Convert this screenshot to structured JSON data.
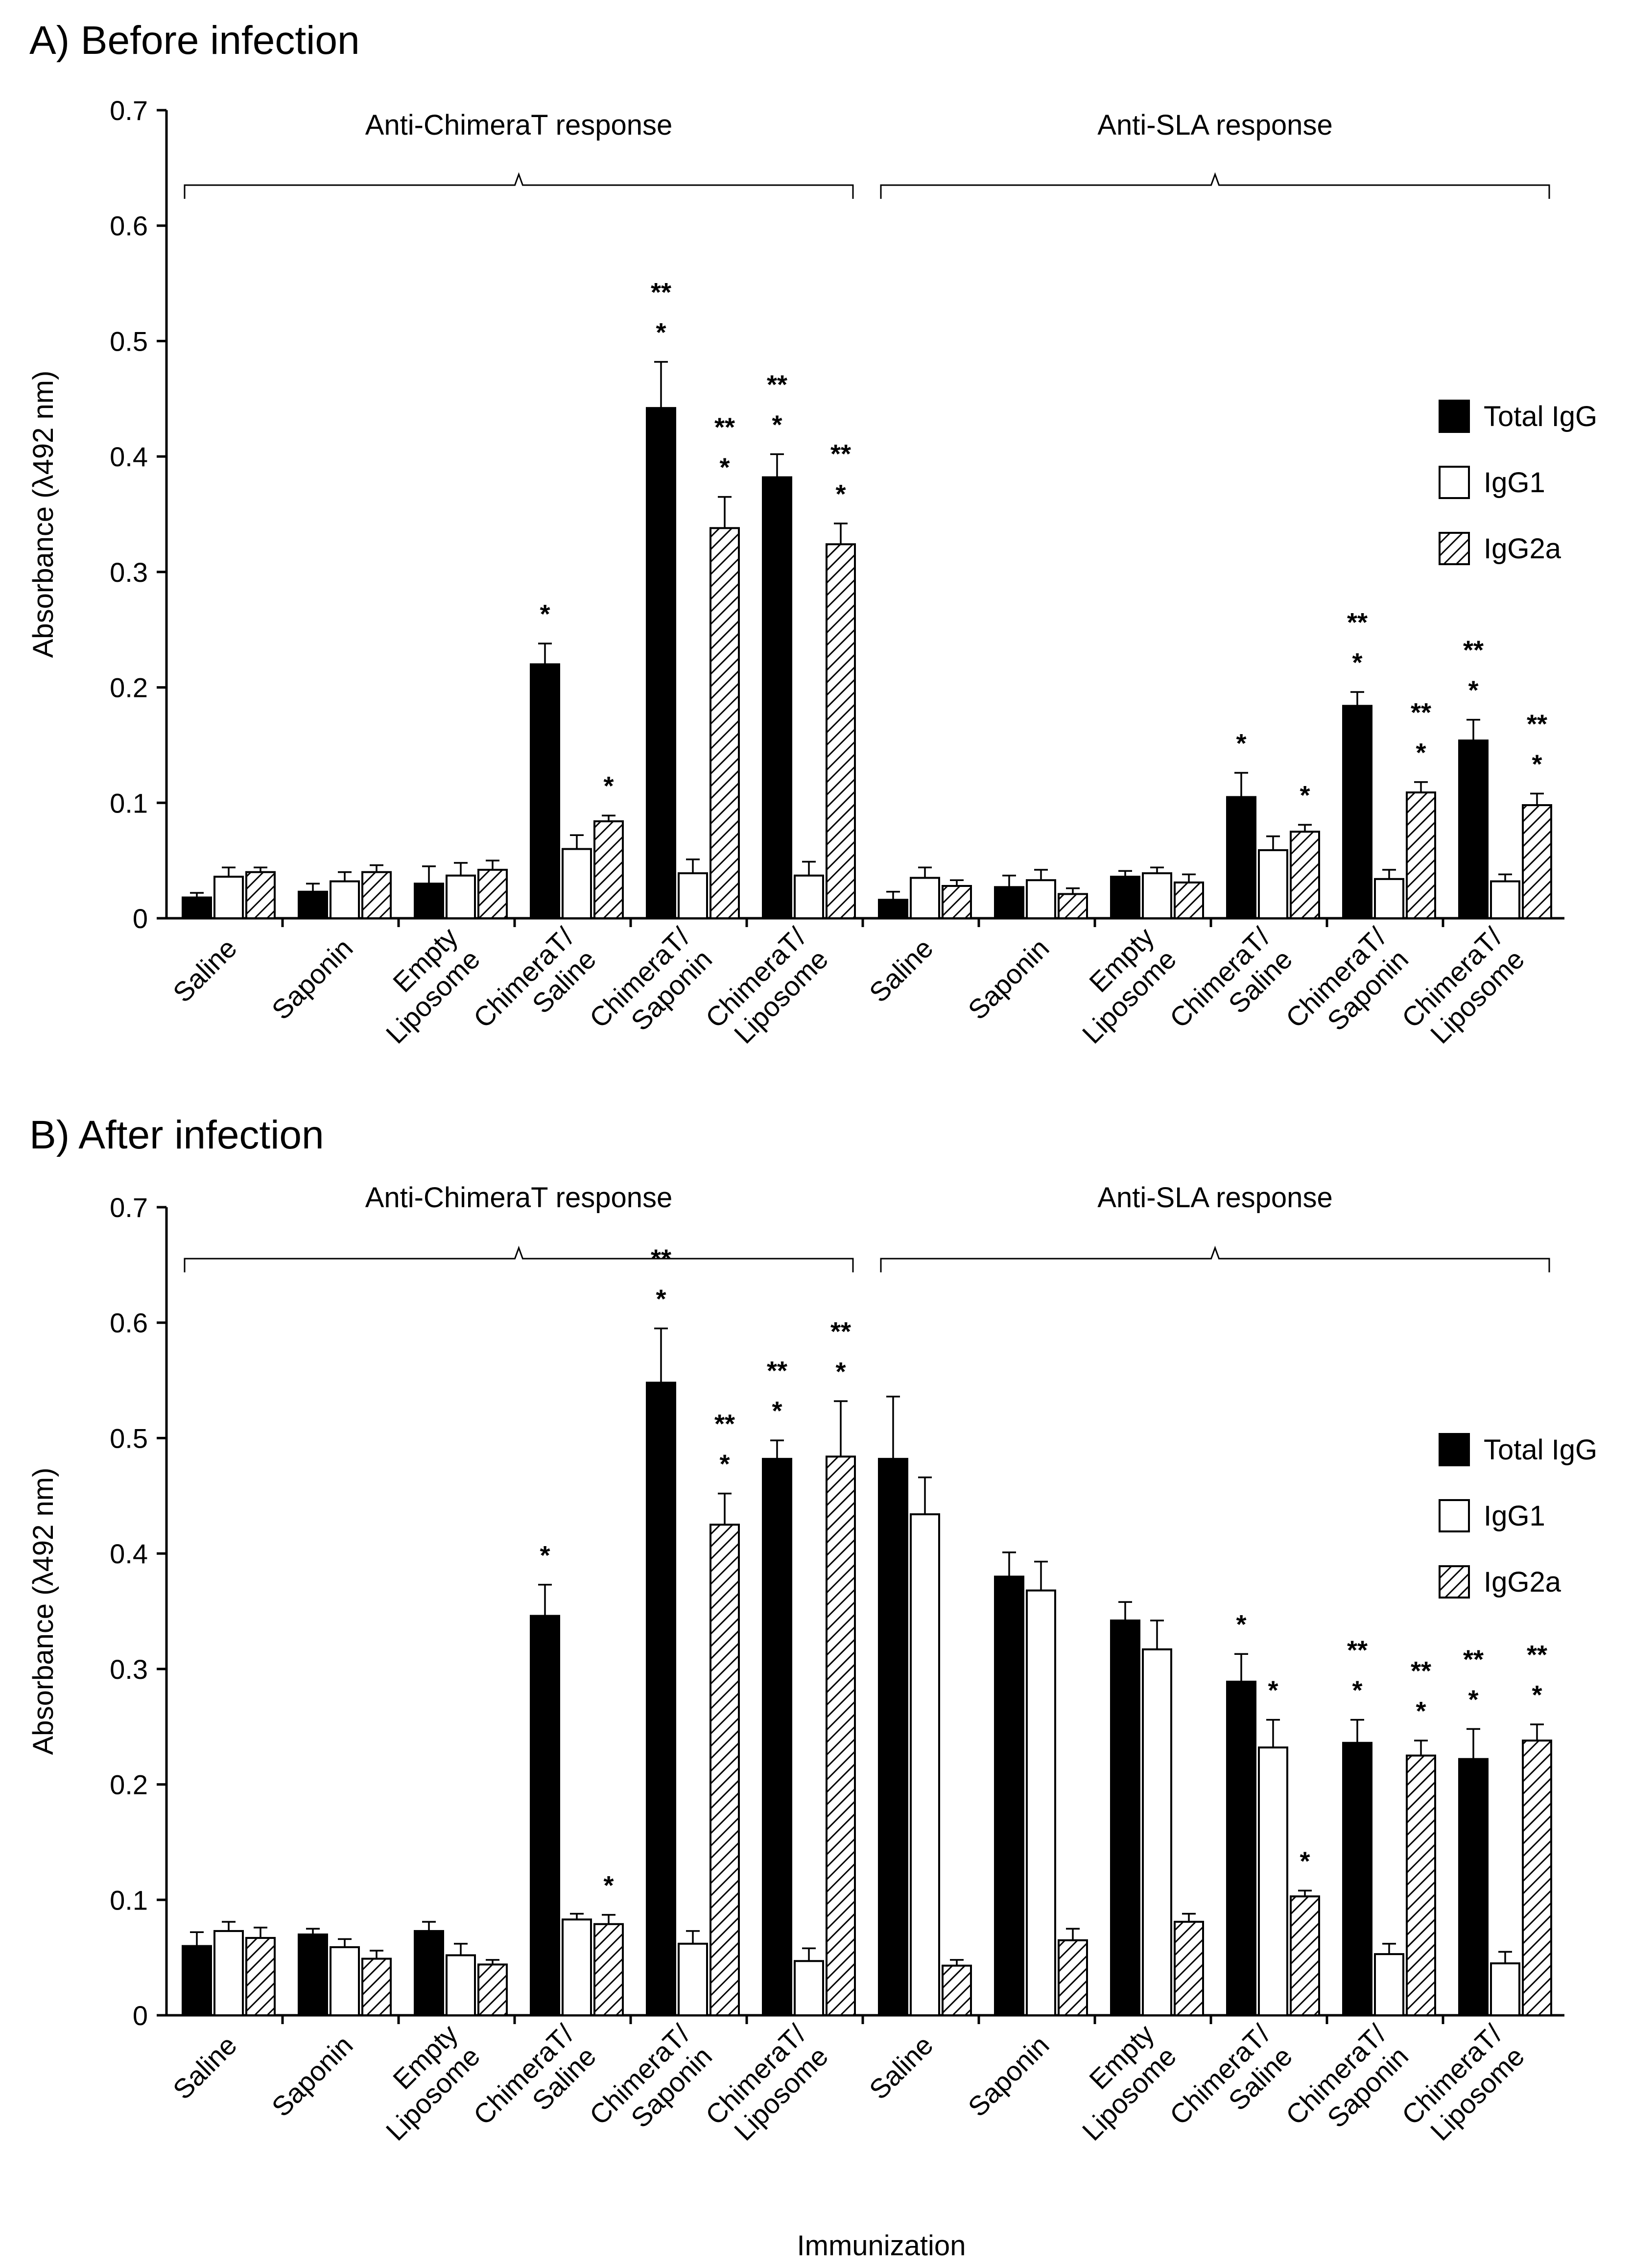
{
  "chart_data": [
    {
      "type": "bar",
      "title": "A) Before infection",
      "ylabel": "Absorbance (λ492 nm)",
      "xlabel": "",
      "ylim": [
        0,
        0.7
      ],
      "yticks": [
        "0",
        "0.1",
        "0.2",
        "0.3",
        "0.4",
        "0.5",
        "0.6",
        "0.7"
      ],
      "grid": false,
      "legend_position": "right",
      "group_labels": [
        "Anti-ChimeraT response",
        "Anti-SLA response"
      ],
      "categories": [
        [
          "Saline"
        ],
        [
          "Saponin"
        ],
        [
          "Empty",
          "Liposome"
        ],
        [
          "ChimeraT/",
          "Saline"
        ],
        [
          "ChimeraT/",
          "Saponin"
        ],
        [
          "ChimeraT/",
          "Liposome"
        ],
        [
          "Saline"
        ],
        [
          "Saponin"
        ],
        [
          "Empty",
          "Liposome"
        ],
        [
          "ChimeraT/",
          "Saline"
        ],
        [
          "ChimeraT/",
          "Saponin"
        ],
        [
          "ChimeraT/",
          "Liposome"
        ]
      ],
      "series": [
        {
          "name": "Total IgG",
          "pattern": "solid",
          "color": "#000000",
          "values": [
            0.018,
            0.023,
            0.03,
            0.22,
            0.442,
            0.382,
            0.016,
            0.027,
            0.036,
            0.105,
            0.184,
            0.154
          ],
          "errors": [
            0.004,
            0.007,
            0.015,
            0.018,
            0.04,
            0.02,
            0.007,
            0.01,
            0.005,
            0.021,
            0.012,
            0.018
          ],
          "marks": [
            "",
            "",
            "",
            "*",
            "*|**",
            "*|**",
            "",
            "",
            "",
            "*",
            "*|**",
            "*|**"
          ]
        },
        {
          "name": "IgG1",
          "pattern": "open",
          "color": "#ffffff",
          "values": [
            0.036,
            0.032,
            0.037,
            0.06,
            0.039,
            0.037,
            0.035,
            0.033,
            0.039,
            0.059,
            0.034,
            0.032
          ],
          "errors": [
            0.008,
            0.008,
            0.011,
            0.012,
            0.012,
            0.012,
            0.009,
            0.009,
            0.005,
            0.012,
            0.008,
            0.006
          ],
          "marks": [
            "",
            "",
            "",
            "",
            "",
            "",
            "",
            "",
            "",
            "",
            "",
            ""
          ]
        },
        {
          "name": "IgG2a",
          "pattern": "hatched",
          "color": "#000000",
          "values": [
            0.04,
            0.04,
            0.042,
            0.084,
            0.338,
            0.324,
            0.028,
            0.021,
            0.031,
            0.075,
            0.109,
            0.098
          ],
          "errors": [
            0.004,
            0.006,
            0.008,
            0.005,
            0.027,
            0.018,
            0.005,
            0.005,
            0.007,
            0.006,
            0.009,
            0.01
          ],
          "marks": [
            "",
            "",
            "",
            "*",
            "*|**",
            "*|**",
            "",
            "",
            "",
            "*",
            "*|**",
            "*|**"
          ]
        }
      ]
    },
    {
      "type": "bar",
      "title": "B) After infection",
      "ylabel": "Absorbance (λ492 nm)",
      "xlabel": "Immunization",
      "ylim": [
        0,
        0.7
      ],
      "yticks": [
        "0",
        "0.1",
        "0.2",
        "0.3",
        "0.4",
        "0.5",
        "0.6",
        "0.7"
      ],
      "grid": false,
      "legend_position": "right",
      "group_labels": [
        "Anti-ChimeraT response",
        "Anti-SLA response"
      ],
      "categories": [
        [
          "Saline"
        ],
        [
          "Saponin"
        ],
        [
          "Empty",
          "Liposome"
        ],
        [
          "ChimeraT/",
          "Saline"
        ],
        [
          "ChimeraT/",
          "Saponin"
        ],
        [
          "ChimeraT/",
          "Liposome"
        ],
        [
          "Saline"
        ],
        [
          "Saponin"
        ],
        [
          "Empty",
          "Liposome"
        ],
        [
          "ChimeraT/",
          "Saline"
        ],
        [
          "ChimeraT/",
          "Saponin"
        ],
        [
          "ChimeraT/",
          "Liposome"
        ]
      ],
      "series": [
        {
          "name": "Total IgG",
          "pattern": "solid",
          "color": "#000000",
          "values": [
            0.06,
            0.07,
            0.073,
            0.346,
            0.548,
            0.482,
            0.482,
            0.38,
            0.342,
            0.289,
            0.236,
            0.222
          ],
          "errors": [
            0.012,
            0.005,
            0.008,
            0.027,
            0.047,
            0.016,
            0.054,
            0.021,
            0.016,
            0.024,
            0.02,
            0.026
          ],
          "marks": [
            "",
            "",
            "",
            "*",
            "*|**",
            "*|**",
            "",
            "",
            "",
            "*",
            "*|**",
            "*|**"
          ]
        },
        {
          "name": "IgG1",
          "pattern": "open",
          "color": "#ffffff",
          "values": [
            0.073,
            0.059,
            0.052,
            0.083,
            0.062,
            0.047,
            0.434,
            0.368,
            0.317,
            0.232,
            0.053,
            0.045
          ],
          "errors": [
            0.008,
            0.007,
            0.01,
            0.005,
            0.011,
            0.011,
            0.032,
            0.025,
            0.025,
            0.024,
            0.009,
            0.01
          ],
          "marks": [
            "",
            "",
            "",
            "",
            "",
            "",
            "",
            "",
            "",
            "*",
            "",
            ""
          ]
        },
        {
          "name": "IgG2a",
          "pattern": "hatched",
          "color": "#000000",
          "values": [
            0.067,
            0.049,
            0.044,
            0.079,
            0.425,
            0.484,
            0.043,
            0.065,
            0.081,
            0.103,
            0.225,
            0.238
          ],
          "errors": [
            0.009,
            0.007,
            0.004,
            0.008,
            0.027,
            0.048,
            0.005,
            0.01,
            0.007,
            0.005,
            0.013,
            0.014
          ],
          "marks": [
            "",
            "",
            "",
            "*",
            "*|**",
            "*|**",
            "",
            "",
            "",
            "*",
            "*|**",
            "*|**"
          ]
        }
      ]
    }
  ]
}
